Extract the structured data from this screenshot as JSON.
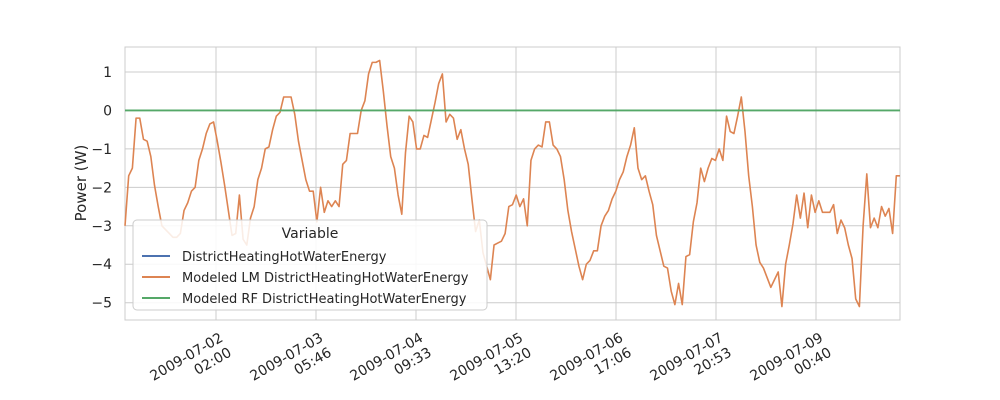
{
  "chart_data": {
    "type": "line",
    "ylabel": "Power (W)",
    "xlabel": "",
    "ylim": [
      -5.45,
      1.65
    ],
    "yticks": [
      1,
      0,
      -1,
      -2,
      -3,
      -4,
      -5
    ],
    "ytick_labels": [
      "1",
      "0",
      "−1",
      "−2",
      "−3",
      "−4",
      "−5"
    ],
    "xticks": [
      {
        "line1": "2009-07-02",
        "line2": "02:00"
      },
      {
        "line1": "2009-07-03",
        "line2": "05:46"
      },
      {
        "line1": "2009-07-04",
        "line2": "09:33"
      },
      {
        "line1": "2009-07-05",
        "line2": "13:20"
      },
      {
        "line1": "2009-07-06",
        "line2": "17:06"
      },
      {
        "line1": "2009-07-07",
        "line2": "20:53"
      },
      {
        "line1": "2009-07-09",
        "line2": "00:40"
      }
    ],
    "grid": true,
    "legend": {
      "title": "Variable",
      "placement": "lower-left"
    },
    "series": [
      {
        "name": "DistrictHeatingHotWaterEnergy",
        "color": "#4c72b0",
        "values": []
      },
      {
        "name": "Modeled LM DistrictHeatingHotWaterEnergy",
        "color": "#dd8452",
        "values": [
          -3.0,
          -1.7,
          -1.5,
          -0.2,
          -0.2,
          -0.75,
          -0.8,
          -1.2,
          -1.95,
          -2.5,
          -3.0,
          -3.1,
          -3.2,
          -3.3,
          -3.3,
          -3.2,
          -2.6,
          -2.4,
          -2.1,
          -2.0,
          -1.3,
          -1.0,
          -0.6,
          -0.35,
          -0.3,
          -0.8,
          -1.35,
          -1.95,
          -2.6,
          -3.25,
          -3.2,
          -2.2,
          -3.35,
          -3.5,
          -2.8,
          -2.5,
          -1.8,
          -1.5,
          -1.0,
          -0.95,
          -0.5,
          -0.15,
          -0.05,
          0.35,
          0.35,
          0.35,
          -0.1,
          -0.8,
          -1.3,
          -1.8,
          -2.1,
          -2.1,
          -2.9,
          -2.0,
          -2.65,
          -2.35,
          -2.5,
          -2.35,
          -2.5,
          -1.4,
          -1.3,
          -0.6,
          -0.6,
          -0.6,
          0.0,
          0.25,
          0.95,
          1.25,
          1.25,
          1.3,
          0.5,
          -0.4,
          -1.2,
          -1.5,
          -2.2,
          -2.7,
          -1.1,
          -0.15,
          -0.3,
          -1.0,
          -1.0,
          -0.65,
          -0.7,
          -0.25,
          0.2,
          0.7,
          0.95,
          -0.3,
          -0.1,
          -0.2,
          -0.75,
          -0.5,
          -1.0,
          -1.4,
          -2.3,
          -3.15,
          -2.85,
          -3.7,
          -4.05,
          -4.4,
          -3.5,
          -3.45,
          -3.4,
          -3.2,
          -2.5,
          -2.45,
          -2.2,
          -2.5,
          -2.3,
          -3.0,
          -1.3,
          -1.0,
          -0.9,
          -0.95,
          -0.3,
          -0.3,
          -0.9,
          -1.0,
          -1.2,
          -1.8,
          -2.6,
          -3.15,
          -3.6,
          -4.05,
          -4.4,
          -4.0,
          -3.9,
          -3.65,
          -3.65,
          -3.0,
          -2.75,
          -2.6,
          -2.3,
          -2.1,
          -1.8,
          -1.6,
          -1.2,
          -0.9,
          -0.45,
          -1.5,
          -1.8,
          -1.7,
          -2.1,
          -2.45,
          -3.25,
          -3.65,
          -4.05,
          -4.1,
          -4.7,
          -5.05,
          -4.5,
          -5.05,
          -3.8,
          -3.75,
          -2.9,
          -2.4,
          -1.5,
          -1.85,
          -1.5,
          -1.25,
          -1.3,
          -1.0,
          -1.3,
          -0.15,
          -0.55,
          -0.6,
          -0.15,
          0.35,
          -0.55,
          -1.7,
          -2.5,
          -3.5,
          -3.95,
          -4.1,
          -4.35,
          -4.6,
          -4.4,
          -4.2,
          -5.1,
          -4.0,
          -3.5,
          -2.95,
          -2.2,
          -2.8,
          -2.15,
          -3.05,
          -2.2,
          -2.65,
          -2.35,
          -2.65,
          -2.65,
          -2.65,
          -2.45,
          -3.2,
          -2.85,
          -3.05,
          -3.5,
          -3.85,
          -4.9,
          -5.1,
          -3.0,
          -1.65,
          -3.05,
          -2.8,
          -3.05,
          -2.5,
          -2.75,
          -2.55,
          -3.2,
          -1.7,
          -1.7
        ]
      },
      {
        "name": "Modeled RF DistrictHeatingHotWaterEnergy",
        "color": "#55a868",
        "values": "constant 0"
      }
    ]
  }
}
